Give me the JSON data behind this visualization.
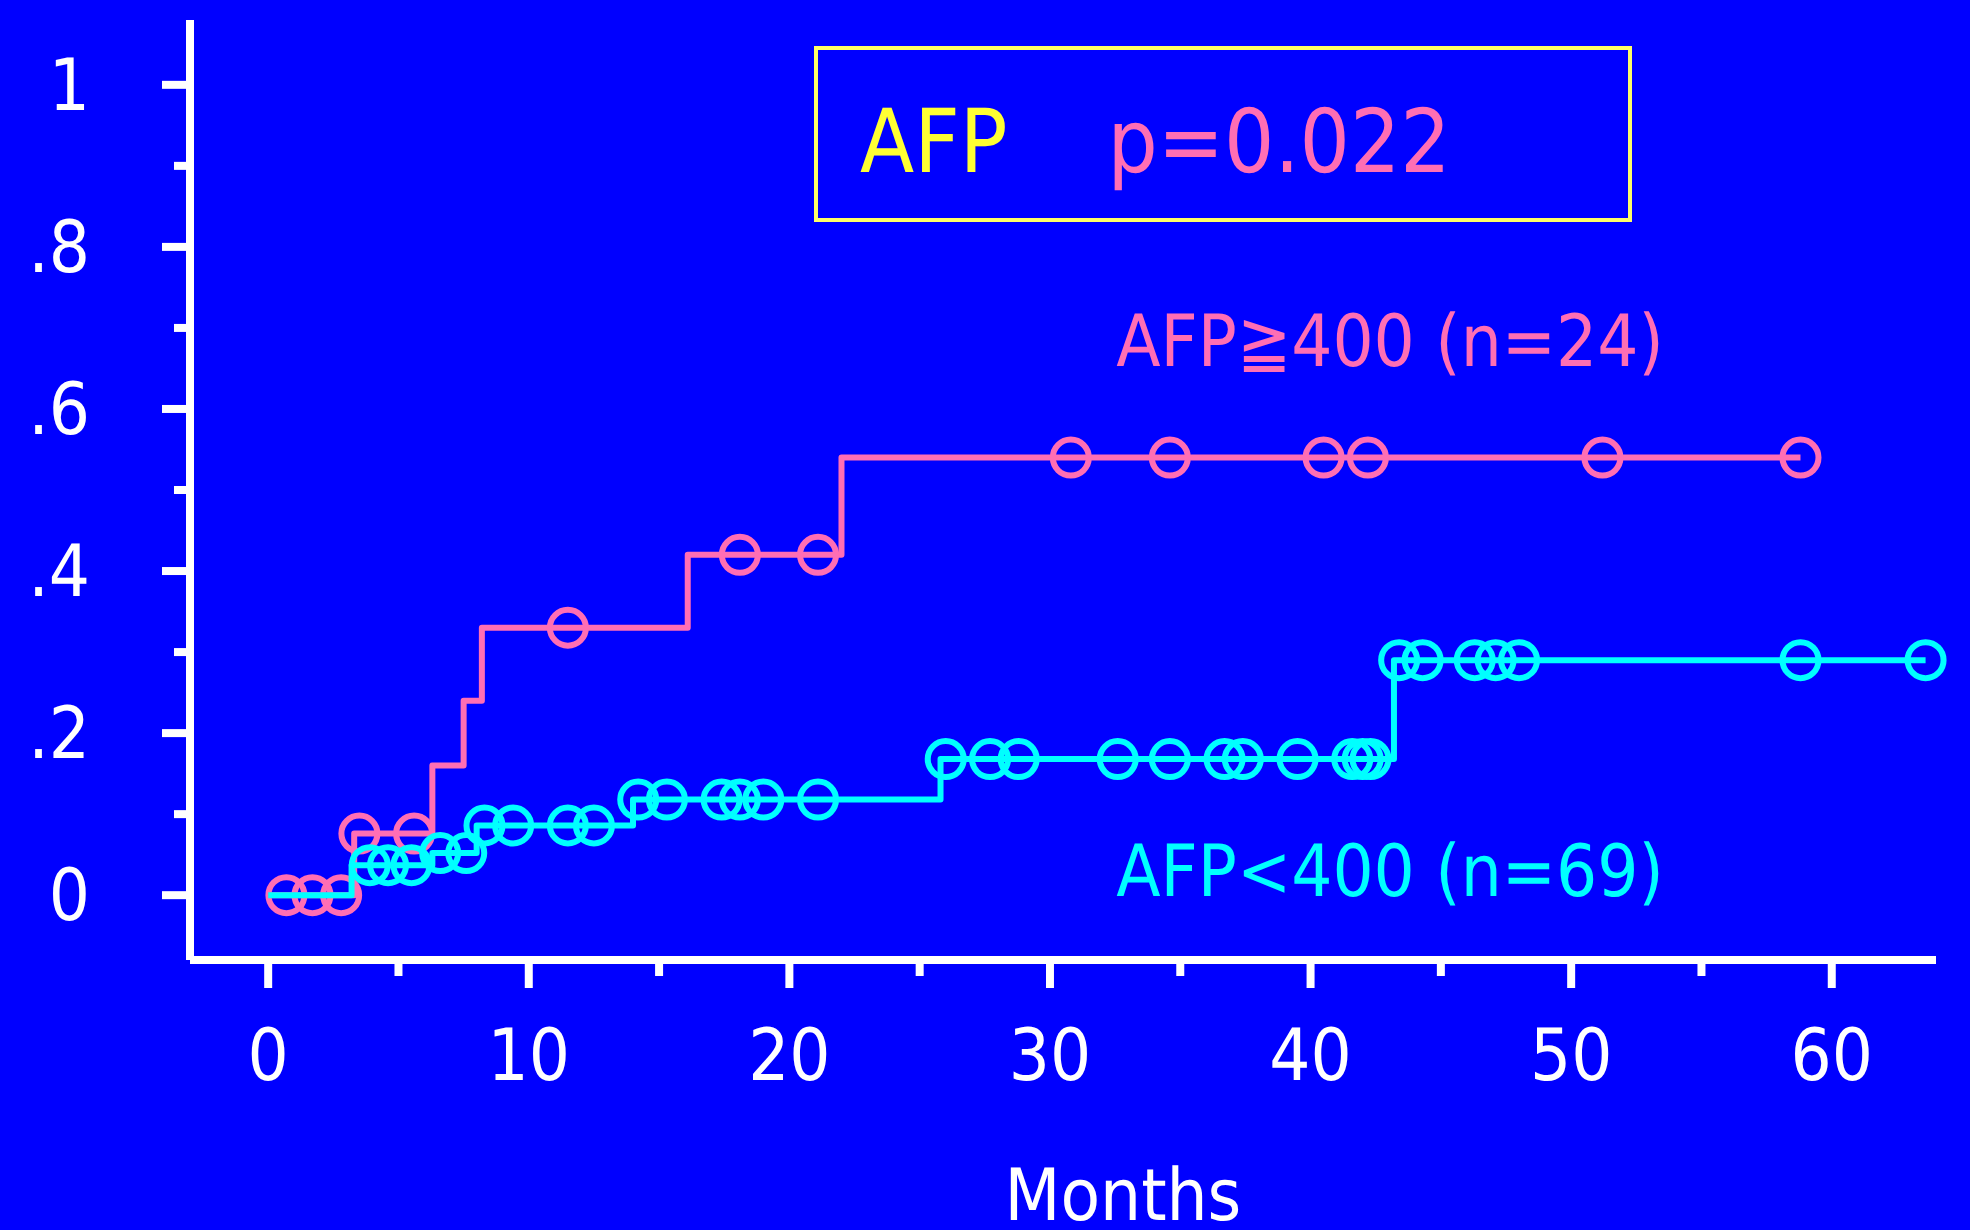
{
  "chart_data": {
    "type": "step",
    "title": "AFP",
    "subtitle": "p=0.022",
    "xlabel": "Months",
    "xlim": [
      -3,
      64
    ],
    "ylim": [
      -0.08,
      1.08
    ],
    "xticks": [
      0,
      {
        "value": 5,
        "label": null
      },
      10,
      {
        "value": 15,
        "label": null
      },
      20,
      {
        "value": 25,
        "label": null
      },
      30,
      {
        "value": 35,
        "label": null
      },
      40,
      {
        "value": 45,
        "label": null
      },
      50,
      {
        "value": 55,
        "label": null
      },
      60
    ],
    "yticks": [
      {
        "value": 0,
        "label": "0"
      },
      {
        "value": 0.1,
        "label": null
      },
      {
        "value": 0.2,
        "label": ".2"
      },
      {
        "value": 0.3,
        "label": null
      },
      {
        "value": 0.4,
        "label": ".4"
      },
      {
        "value": 0.5,
        "label": null
      },
      {
        "value": 0.6,
        "label": ".6"
      },
      {
        "value": 0.7,
        "label": null
      },
      {
        "value": 0.8,
        "label": ".8"
      },
      {
        "value": 0.9,
        "label": null
      },
      {
        "value": 1,
        "label": "1"
      }
    ],
    "series": [
      {
        "name": "AFP≧400 (n=24)",
        "color": "#ff6eb4",
        "marker": "none",
        "x": [
          0,
          3.3,
          6.3,
          7.5,
          8.2,
          16.1,
          22.0,
          58.8
        ],
        "values": [
          0,
          0.076,
          0.16,
          0.24,
          0.33,
          0.42,
          0.54,
          0.54
        ]
      },
      {
        "type": "scatter",
        "color": "#ff6eb4",
        "marker": "circle",
        "x": [
          0.7,
          1.7,
          2.8,
          3.5,
          5.6,
          11.5,
          18.1,
          21.1,
          30.8,
          34.6,
          40.5,
          42.2,
          51.2,
          58.8
        ],
        "values": [
          0,
          0,
          0,
          0.076,
          0.076,
          0.33,
          0.42,
          0.42,
          0.54,
          0.54,
          0.54,
          0.54,
          0.54,
          0.54
        ]
      },
      {
        "name": "AFP<400 (n=69)",
        "color": "#00ffff",
        "marker": "none",
        "x": [
          0,
          3.2,
          6.3,
          8.0,
          14.0,
          25.8,
          43.2,
          63.6
        ],
        "values": [
          0,
          0.037,
          0.052,
          0.086,
          0.118,
          0.168,
          0.29,
          0.29
        ]
      },
      {
        "type": "scatter",
        "color": "#00ffff",
        "marker": "circle",
        "x": [
          3.9,
          4.6,
          5.5,
          6.6,
          7.6,
          8.3,
          9.4,
          11.5,
          12.5,
          14.2,
          15.3,
          17.4,
          18.1,
          19.0,
          21.1,
          26.0,
          27.7,
          28.8,
          32.6,
          34.6,
          36.7,
          37.4,
          39.5,
          41.6,
          42.0,
          42.3,
          43.4,
          44.3,
          46.3,
          47.1,
          48.0,
          58.8,
          63.6
        ],
        "values": [
          0.037,
          0.037,
          0.037,
          0.052,
          0.052,
          0.086,
          0.086,
          0.086,
          0.086,
          0.118,
          0.118,
          0.118,
          0.118,
          0.118,
          0.118,
          0.168,
          0.168,
          0.168,
          0.168,
          0.168,
          0.168,
          0.168,
          0.168,
          0.168,
          0.168,
          0.168,
          0.29,
          0.29,
          0.29,
          0.29,
          0.29,
          0.29,
          0.29
        ]
      }
    ]
  }
}
